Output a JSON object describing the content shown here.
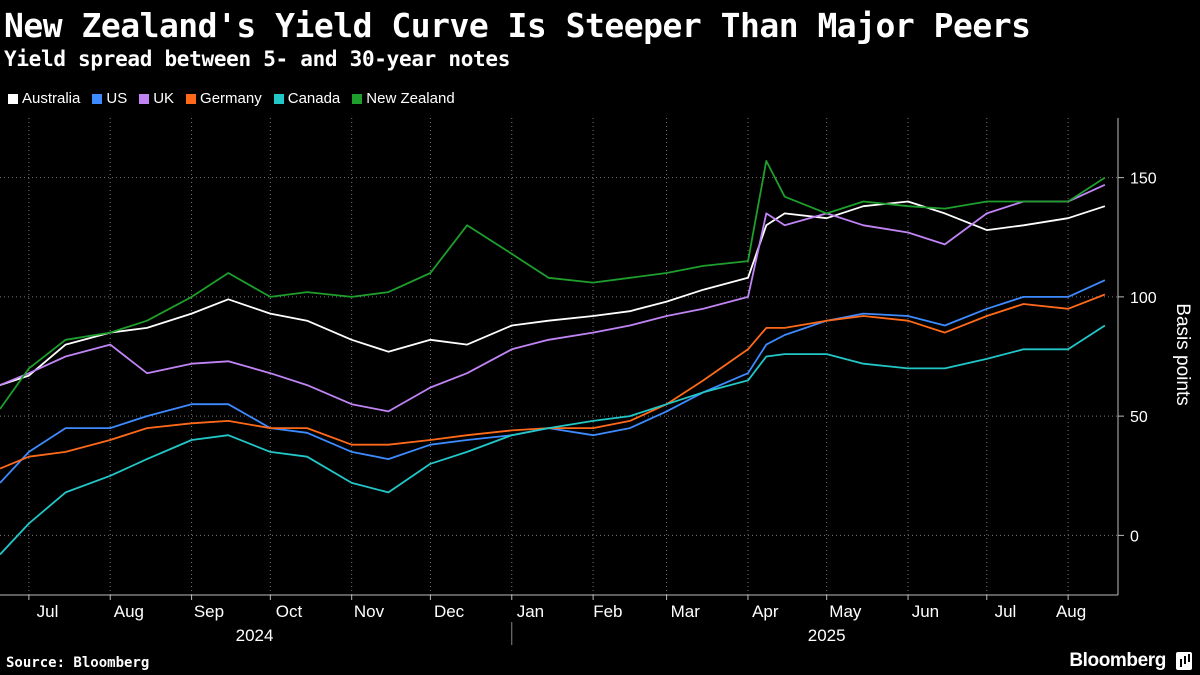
{
  "chart_data": {
    "type": "line",
    "title": "New Zealand's Yield Curve Is Steeper Than Major Peers",
    "subtitle": "Yield spread between 5- and 30-year notes",
    "ylabel": "Basis points",
    "xlabel": "",
    "ylim": [
      -25,
      175
    ],
    "yticks": [
      0,
      50,
      100,
      150
    ],
    "xlim": [
      "2024-06-20",
      "2025-08-20"
    ],
    "x_tick_labels": [
      "Jul",
      "Aug",
      "Sep",
      "Oct",
      "Nov",
      "Dec",
      "Jan",
      "Feb",
      "Mar",
      "Apr",
      "May",
      "Jun",
      "Jul",
      "Aug"
    ],
    "x_ticks": [
      "2024-07-01",
      "2024-08-01",
      "2024-09-01",
      "2024-10-01",
      "2024-11-01",
      "2024-12-01",
      "2025-01-01",
      "2025-02-01",
      "2025-03-01",
      "2025-04-01",
      "2025-05-01",
      "2025-06-01",
      "2025-07-01",
      "2025-08-01"
    ],
    "year_labels": [
      {
        "label": "2024",
        "center": "2024-09-25"
      },
      {
        "label": "2025",
        "center": "2025-05-01"
      }
    ],
    "year_divider": "2025-01-01",
    "grid": "dotted horizontal and vertical",
    "legend_position": "top-left",
    "x": [
      "2024-06-20",
      "2024-07-01",
      "2024-07-15",
      "2024-08-01",
      "2024-08-15",
      "2024-09-01",
      "2024-09-15",
      "2024-10-01",
      "2024-10-15",
      "2024-11-01",
      "2024-11-15",
      "2024-12-01",
      "2024-12-15",
      "2025-01-01",
      "2025-01-15",
      "2025-02-01",
      "2025-02-15",
      "2025-03-01",
      "2025-03-15",
      "2025-04-01",
      "2025-04-08",
      "2025-04-15",
      "2025-05-01",
      "2025-05-15",
      "2025-06-01",
      "2025-06-15",
      "2025-07-01",
      "2025-07-15",
      "2025-08-01",
      "2025-08-15"
    ],
    "series": [
      {
        "name": "Australia",
        "color": "#ffffff",
        "values": [
          63,
          67,
          80,
          85,
          87,
          93,
          99,
          93,
          90,
          82,
          77,
          82,
          80,
          88,
          90,
          92,
          94,
          98,
          103,
          108,
          130,
          135,
          133,
          138,
          140,
          135,
          128,
          130,
          133,
          138
        ]
      },
      {
        "name": "US",
        "color": "#3d8bff",
        "values": [
          22,
          35,
          45,
          45,
          50,
          55,
          55,
          45,
          43,
          35,
          32,
          38,
          40,
          42,
          45,
          42,
          45,
          52,
          60,
          68,
          80,
          84,
          90,
          93,
          92,
          88,
          95,
          100,
          100,
          107
        ]
      },
      {
        "name": "UK",
        "color": "#c084f5",
        "values": [
          63,
          68,
          75,
          80,
          68,
          72,
          73,
          68,
          63,
          55,
          52,
          62,
          68,
          78,
          82,
          85,
          88,
          92,
          95,
          100,
          135,
          130,
          135,
          130,
          127,
          122,
          135,
          140,
          140,
          147
        ]
      },
      {
        "name": "Germany",
        "color": "#ff6a1a",
        "values": [
          28,
          33,
          35,
          40,
          45,
          47,
          48,
          45,
          45,
          38,
          38,
          40,
          42,
          44,
          45,
          45,
          48,
          55,
          65,
          78,
          87,
          87,
          90,
          92,
          90,
          85,
          92,
          97,
          95,
          101
        ]
      },
      {
        "name": "Canada",
        "color": "#22c7c8",
        "values": [
          -8,
          5,
          18,
          25,
          32,
          40,
          42,
          35,
          33,
          22,
          18,
          30,
          35,
          42,
          45,
          48,
          50,
          55,
          60,
          65,
          75,
          76,
          76,
          72,
          70,
          70,
          74,
          78,
          78,
          88
        ]
      },
      {
        "name": "New Zealand",
        "color": "#1e9e2c",
        "values": [
          53,
          70,
          82,
          85,
          90,
          100,
          110,
          100,
          102,
          100,
          102,
          110,
          130,
          118,
          108,
          106,
          108,
          110,
          113,
          115,
          157,
          142,
          135,
          140,
          138,
          137,
          140,
          140,
          140,
          150
        ]
      }
    ]
  },
  "source_text": "Source: Bloomberg",
  "brand_text": "Bloomberg"
}
